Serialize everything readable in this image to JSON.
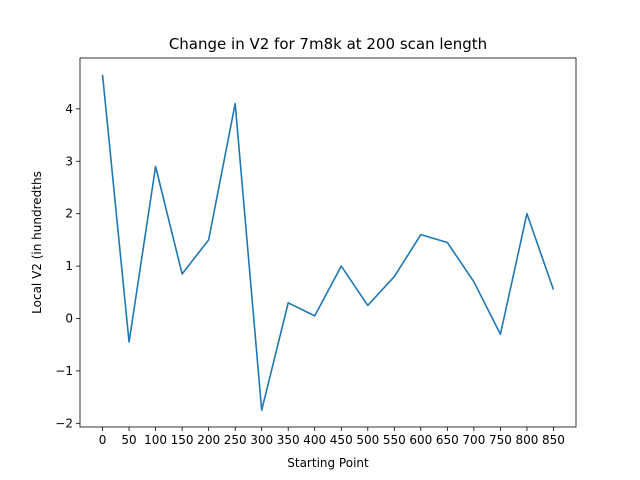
{
  "chart_data": {
    "type": "line",
    "title": "Change in V2 for 7m8k at 200 scan length",
    "xlabel": "Starting Point",
    "ylabel": "Local V2 (in hundredths",
    "x": [
      0,
      50,
      100,
      150,
      200,
      250,
      300,
      350,
      400,
      450,
      500,
      550,
      600,
      650,
      700,
      750,
      800,
      850
    ],
    "xticks": [
      0,
      50,
      100,
      150,
      200,
      250,
      300,
      350,
      400,
      450,
      500,
      550,
      600,
      650,
      700,
      750,
      800,
      850
    ],
    "yticks": [
      -2,
      -1,
      0,
      1,
      2,
      3,
      4
    ],
    "xlim": [
      -42.5,
      892.5
    ],
    "ylim": [
      -2.07,
      4.97
    ],
    "grid": false,
    "series": [
      {
        "color": "#1f77b4",
        "values": [
          4.65,
          -0.45,
          2.9,
          0.85,
          1.5,
          4.1,
          -1.75,
          0.3,
          0.05,
          1.0,
          0.25,
          0.8,
          1.6,
          1.45,
          0.7,
          -0.3,
          2.0,
          0.55
        ]
      }
    ]
  }
}
